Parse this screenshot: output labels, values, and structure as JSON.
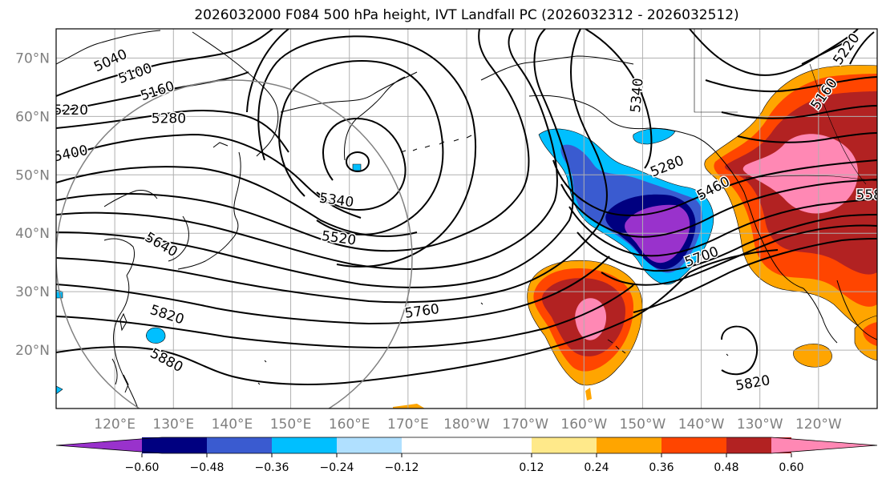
{
  "title": "2026032000 F084 500 hPa height, IVT Landfall PC (2026032312 - 2026032512)",
  "map": {
    "lat_labels": [
      "70°N",
      "60°N",
      "50°N",
      "40°N",
      "30°N",
      "20°N"
    ],
    "lat_values": [
      70,
      60,
      50,
      40,
      30,
      20
    ],
    "lon_labels": [
      "120°E",
      "130°E",
      "140°E",
      "150°E",
      "160°E",
      "170°E",
      "180°W",
      "170°W",
      "160°W",
      "150°W",
      "140°W",
      "130°W",
      "120°W"
    ],
    "lon_values": [
      120,
      130,
      140,
      150,
      160,
      170,
      180,
      190,
      200,
      210,
      220,
      230,
      240
    ],
    "lon_range": [
      110,
      250
    ],
    "lat_range": [
      10,
      75
    ],
    "contour_labels": [
      {
        "text": "5040",
        "lon": 119.3,
        "lat": 69.5,
        "angle": -25
      },
      {
        "text": "5100",
        "lon": 123.5,
        "lat": 67.3,
        "angle": -20
      },
      {
        "text": "5160",
        "lon": 127.3,
        "lat": 64.3,
        "angle": -18
      },
      {
        "text": "5220",
        "lon": 112.5,
        "lat": 61.0,
        "angle": 0
      },
      {
        "text": "5280",
        "lon": 129.2,
        "lat": 59.6,
        "angle": 0
      },
      {
        "text": "5400",
        "lon": 112.5,
        "lat": 53.6,
        "angle": -12
      },
      {
        "text": "5340",
        "lon": 157.8,
        "lat": 45.6,
        "angle": 8
      },
      {
        "text": "5520",
        "lon": 158.2,
        "lat": 39.1,
        "angle": 8
      },
      {
        "text": "5640",
        "lon": 127.9,
        "lat": 38.0,
        "angle": 30
      },
      {
        "text": "5760",
        "lon": 172.4,
        "lat": 26.6,
        "angle": -8
      },
      {
        "text": "5820",
        "lon": 128.9,
        "lat": 26.0,
        "angle": 18
      },
      {
        "text": "5880",
        "lon": 128.8,
        "lat": 18.2,
        "angle": 28
      },
      {
        "text": "5340",
        "lon": 209.1,
        "lat": 63.6,
        "angle": -85
      },
      {
        "text": "5280",
        "lon": 214.2,
        "lat": 51.4,
        "angle": -22
      },
      {
        "text": "5460",
        "lon": 222.1,
        "lat": 47.6,
        "angle": -28
      },
      {
        "text": "5700",
        "lon": 220.1,
        "lat": 35.9,
        "angle": -20
      },
      {
        "text": "5820",
        "lon": 228.8,
        "lat": 14.3,
        "angle": -10
      },
      {
        "text": "5160",
        "lon": 241.0,
        "lat": 63.8,
        "angle": -55
      },
      {
        "text": "5220",
        "lon": 244.8,
        "lat": 71.5,
        "angle": -55
      },
      {
        "text": "558",
        "lon": 248.6,
        "lat": 46.5,
        "angle": 0
      }
    ]
  },
  "colorbar": {
    "tick_labels": [
      "−0.60",
      "−0.48",
      "−0.36",
      "−0.24",
      "−0.12",
      "0.12",
      "0.24",
      "0.36",
      "0.48",
      "0.60"
    ],
    "tick_values": [
      -0.6,
      -0.48,
      -0.36,
      -0.24,
      -0.12,
      0.12,
      0.24,
      0.36,
      0.48,
      0.6
    ],
    "range": [
      -0.72,
      0.72
    ],
    "colors": {
      "under": "#9932cc",
      "b1": "#9932cc",
      "b2": "#000080",
      "b3": "#3a5bd0",
      "b4": "#00bfff",
      "b5": "#b0e0ff",
      "b6": "#ffffff",
      "b7": "#ffe98a",
      "b8": "#ffa500",
      "b9": "#ff4500",
      "b10": "#b22222",
      "b11": "#ff88b4",
      "over": "#ff88b4"
    }
  }
}
